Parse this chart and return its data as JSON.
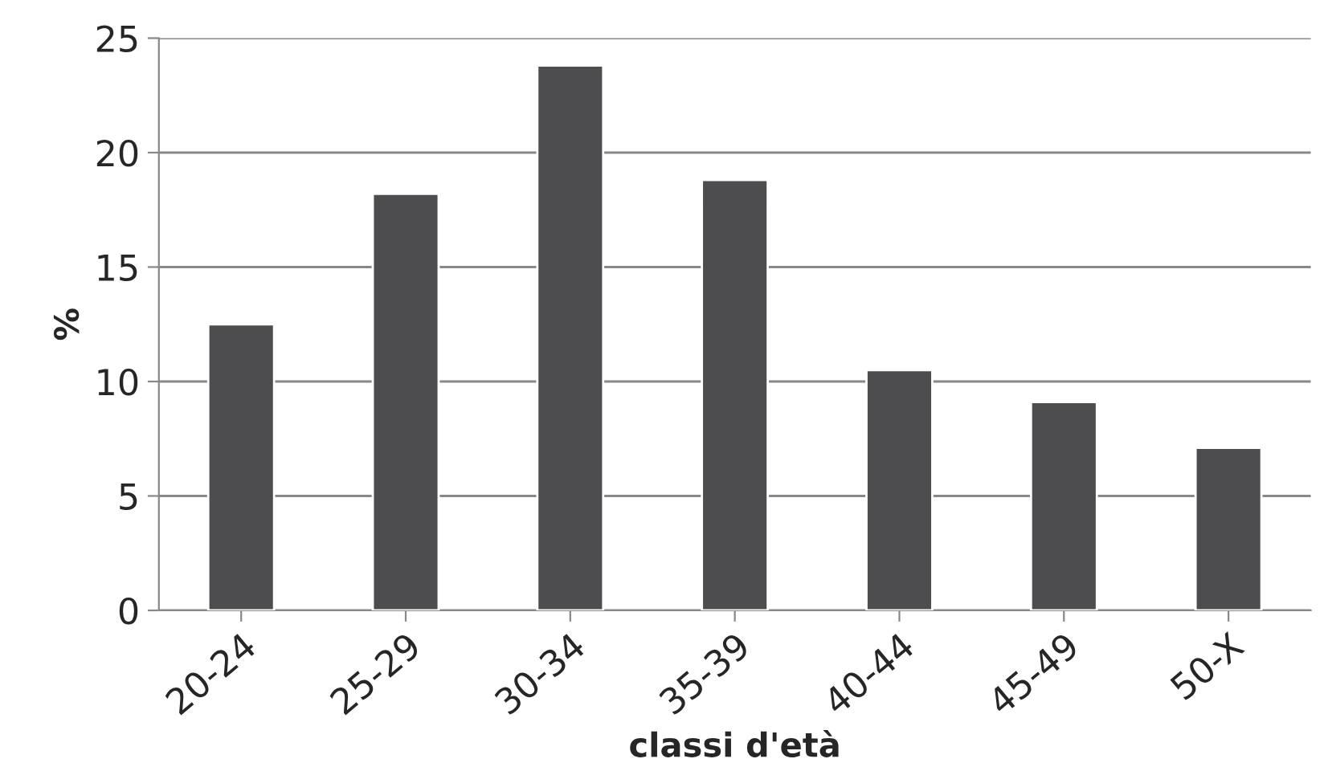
{
  "chart_data": {
    "type": "bar",
    "xlabel": "classi d'età",
    "ylabel": "%",
    "categories": [
      "20-24",
      "25-29",
      "30-34",
      "35-39",
      "40-44",
      "45-49",
      "50-X"
    ],
    "values": [
      12.5,
      18.2,
      23.8,
      18.8,
      10.5,
      9.1,
      7.1
    ],
    "color": "#4d4d4f",
    "ylim": [
      0,
      25
    ],
    "yticks": [
      0,
      5,
      10,
      15,
      20,
      25
    ],
    "grid": "y",
    "legend": false
  }
}
